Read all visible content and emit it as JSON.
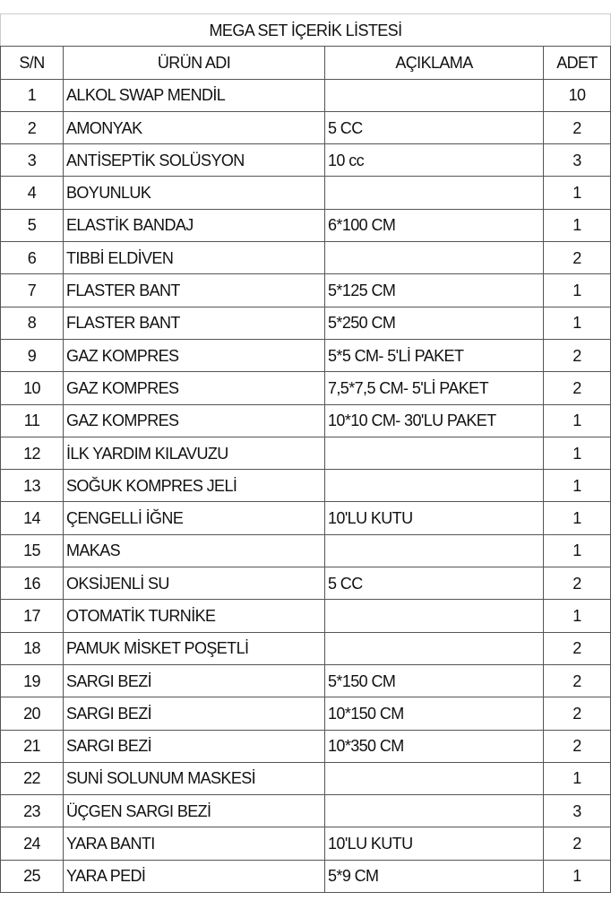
{
  "title": "MEGA SET İÇERİK LİSTESİ",
  "headers": {
    "sn": "S/N",
    "name": "ÜRÜN ADI",
    "desc": "AÇIKLAMA",
    "qty": "ADET"
  },
  "rows": [
    {
      "sn": "1",
      "name": "ALKOL SWAP MENDİL",
      "desc": "",
      "qty": "10"
    },
    {
      "sn": "2",
      "name": "AMONYAK",
      "desc": "5 CC",
      "qty": "2"
    },
    {
      "sn": "3",
      "name": "ANTİSEPTİK SOLÜSYON",
      "desc": "10 cc",
      "qty": "3"
    },
    {
      "sn": "4",
      "name": "BOYUNLUK",
      "desc": "",
      "qty": "1"
    },
    {
      "sn": "5",
      "name": "ELASTİK BANDAJ",
      "desc": "6*100 CM",
      "qty": "1"
    },
    {
      "sn": "6",
      "name": "TIBBİ ELDİVEN",
      "desc": "",
      "qty": "2"
    },
    {
      "sn": "7",
      "name": "FLASTER BANT",
      "desc": "5*125 CM",
      "qty": "1"
    },
    {
      "sn": "8",
      "name": "FLASTER BANT",
      "desc": "5*250 CM",
      "qty": "1"
    },
    {
      "sn": "9",
      "name": "GAZ KOMPRES",
      "desc": "5*5 CM- 5'Lİ PAKET",
      "qty": "2"
    },
    {
      "sn": "10",
      "name": "GAZ KOMPRES",
      "desc": "7,5*7,5 CM- 5'Lİ PAKET",
      "qty": "2"
    },
    {
      "sn": "11",
      "name": "GAZ KOMPRES",
      "desc": "10*10 CM- 30'LU PAKET",
      "qty": "1"
    },
    {
      "sn": "12",
      "name": "İLK YARDIM KILAVUZU",
      "desc": "",
      "qty": "1"
    },
    {
      "sn": "13",
      "name": "SOĞUK KOMPRES JELİ",
      "desc": "",
      "qty": "1"
    },
    {
      "sn": "14",
      "name": "ÇENGELLİ İĞNE",
      "desc": "10'LU KUTU",
      "qty": "1"
    },
    {
      "sn": "15",
      "name": "MAKAS",
      "desc": "",
      "qty": "1"
    },
    {
      "sn": "16",
      "name": "OKSİJENLİ SU",
      "desc": "5 CC",
      "qty": "2"
    },
    {
      "sn": "17",
      "name": "OTOMATİK TURNİKE",
      "desc": "",
      "qty": "1"
    },
    {
      "sn": "18",
      "name": "PAMUK MİSKET POŞETLİ",
      "desc": "",
      "qty": "2"
    },
    {
      "sn": "19",
      "name": "SARGI BEZİ",
      "desc": "5*150 CM",
      "qty": "2"
    },
    {
      "sn": "20",
      "name": "SARGI BEZİ",
      "desc": "10*150 CM",
      "qty": "2"
    },
    {
      "sn": "21",
      "name": "SARGI BEZİ",
      "desc": "10*350 CM",
      "qty": "2"
    },
    {
      "sn": "22",
      "name": "SUNİ SOLUNUM MASKESİ",
      "desc": "",
      "qty": "1"
    },
    {
      "sn": "23",
      "name": "ÜÇGEN SARGI BEZİ",
      "desc": "",
      "qty": "3"
    },
    {
      "sn": "24",
      "name": "YARA BANTI",
      "desc": "10'LU KUTU",
      "qty": "2"
    },
    {
      "sn": "25",
      "name": "YARA PEDİ",
      "desc": "5*9 CM",
      "qty": "1"
    }
  ]
}
